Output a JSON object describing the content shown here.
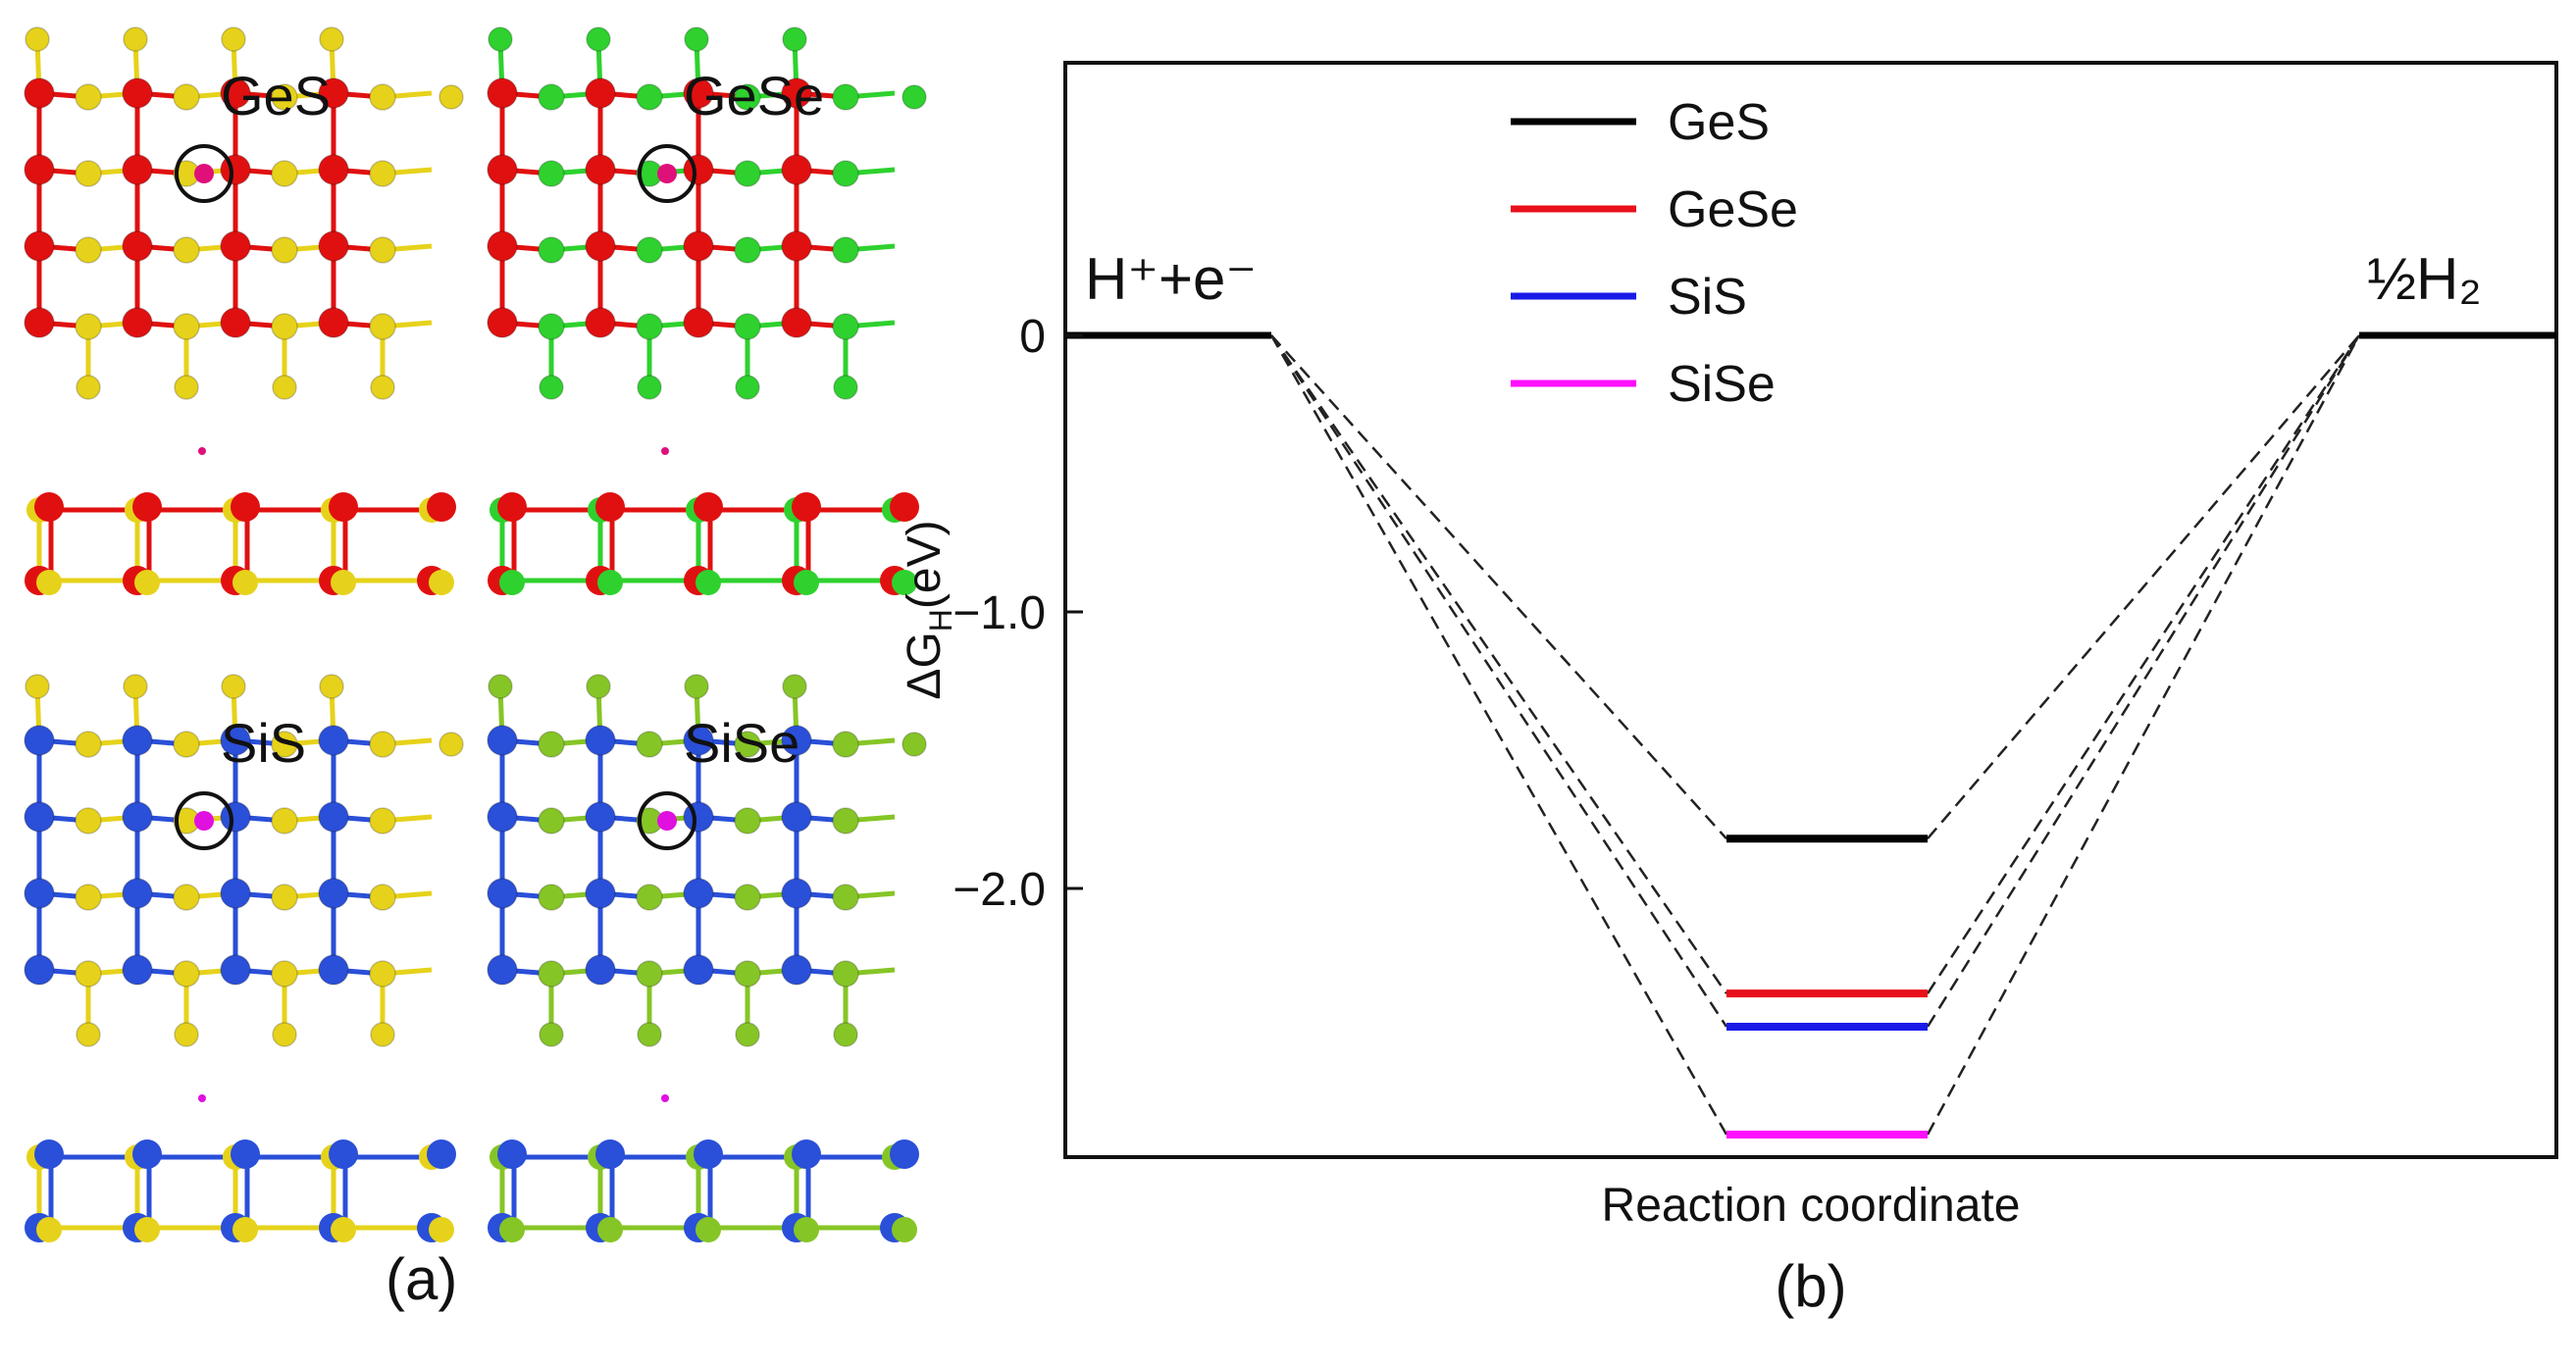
{
  "figure": {
    "panel_a_label": "(a)",
    "panel_b_label": "(b)"
  },
  "structures": [
    {
      "name": "GeS",
      "metal_color": "#e01010",
      "chalcogen_color": "#e6d21a",
      "circle_atom_color": "#e0107a"
    },
    {
      "name": "GeSe",
      "metal_color": "#e01010",
      "chalcogen_color": "#2ed12e",
      "circle_atom_color": "#e0107a"
    },
    {
      "name": "SiS",
      "metal_color": "#2a4fd8",
      "chalcogen_color": "#e6d21a",
      "circle_atom_color": "#e010e0"
    },
    {
      "name": "SiSe",
      "metal_color": "#2a4fd8",
      "chalcogen_color": "#86c526",
      "circle_atom_color": "#e010e0"
    }
  ],
  "chart_data": {
    "type": "line",
    "title": "",
    "xlabel": "Reaction coordinate",
    "ylabel": "ΔG",
    "ylabel_sub": "H",
    "ylabel_unit": "(eV)",
    "ylim": [
      -2.95,
      1.0
    ],
    "yticks": [
      {
        "value": 0,
        "label": "0"
      },
      {
        "value": -1.0,
        "label": "−1.0"
      },
      {
        "value": -2.0,
        "label": "−2.0"
      }
    ],
    "initial_state": {
      "value": 0,
      "label": "H⁺+e⁻"
    },
    "final_state": {
      "value": 0,
      "label": "½H₂"
    },
    "legend_position": "top-left",
    "grid": false,
    "series": [
      {
        "name": "GeS",
        "value": -1.82,
        "color": "#000000"
      },
      {
        "name": "GeSe",
        "value": -2.38,
        "color": "#e8101a"
      },
      {
        "name": "SiS",
        "value": -2.5,
        "color": "#1a1ae8"
      },
      {
        "name": "SiSe",
        "value": -2.89,
        "color": "#ff10ff"
      }
    ]
  }
}
